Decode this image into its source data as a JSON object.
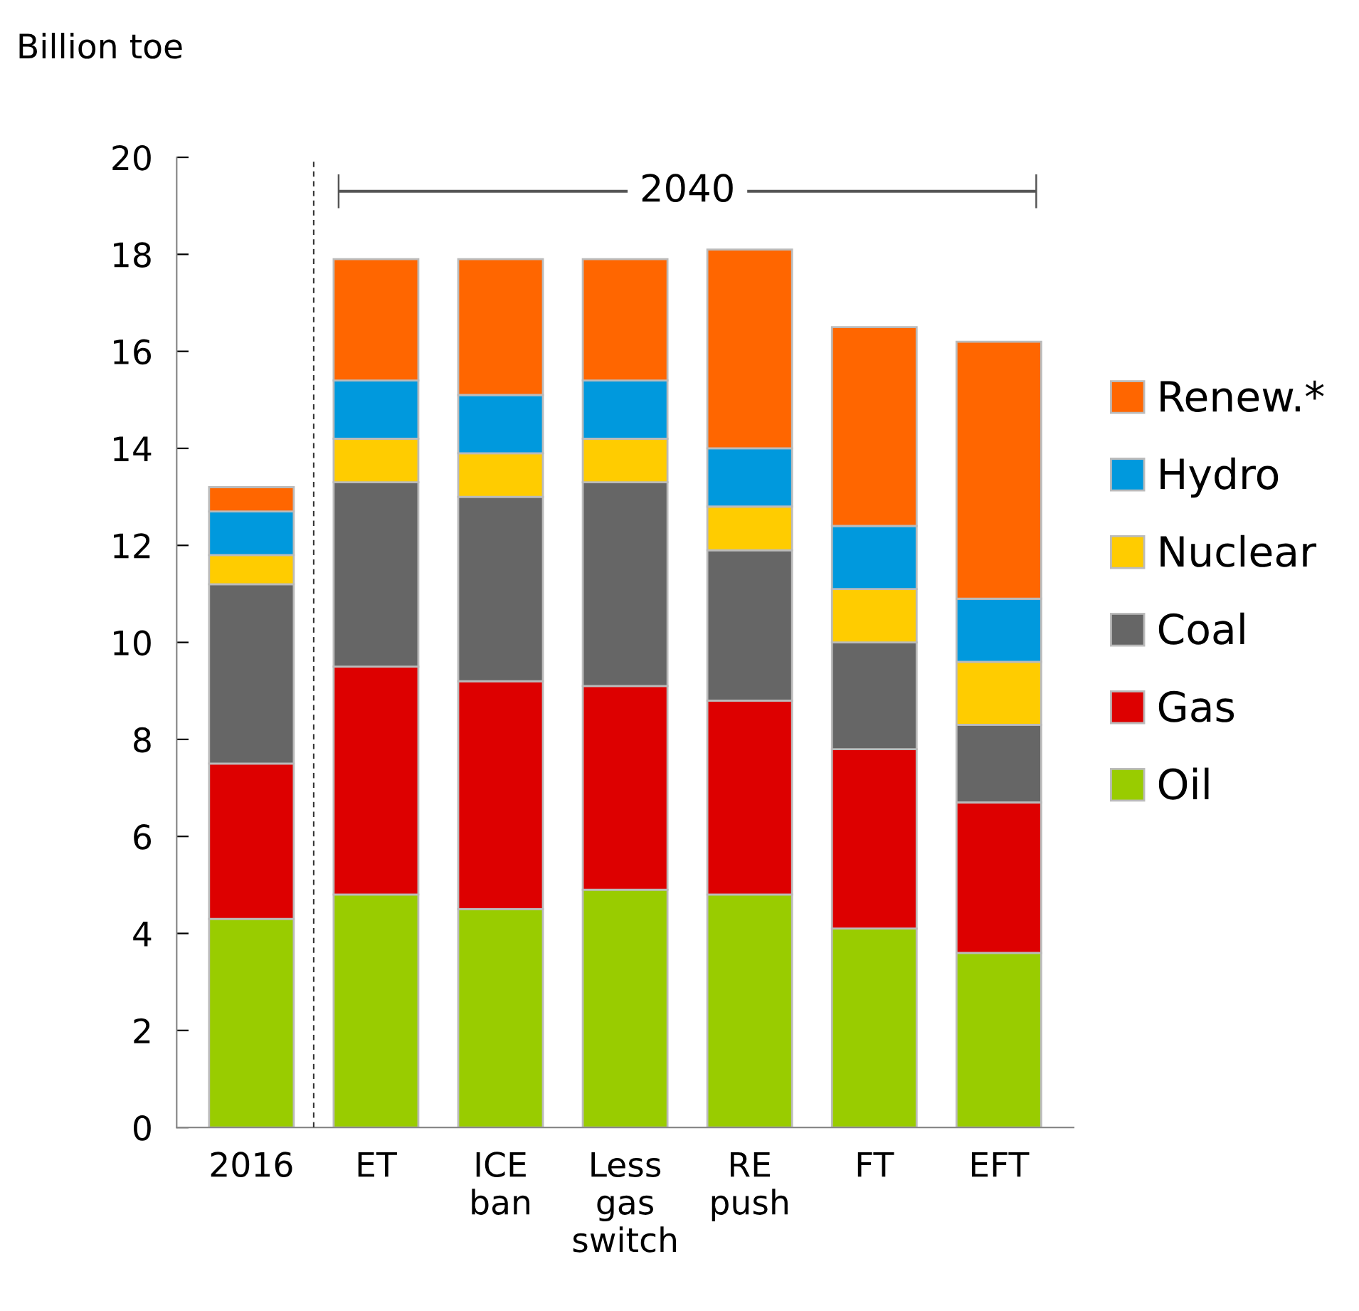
{
  "chart_data": {
    "type": "bar",
    "stacked": true,
    "ylabel": "Billion toe",
    "categories": [
      "2016",
      "ET",
      "ICE\nban",
      "Less\ngas\nswitch",
      "RE\npush",
      "FT",
      "EFT"
    ],
    "series": [
      {
        "name": "Oil",
        "color": "#99cc00",
        "values": [
          4.3,
          4.8,
          4.5,
          4.9,
          4.8,
          4.1,
          3.6
        ]
      },
      {
        "name": "Gas",
        "color": "#dd0000",
        "values": [
          3.2,
          4.7,
          4.7,
          4.2,
          4.0,
          3.7,
          3.1
        ]
      },
      {
        "name": "Coal",
        "color": "#666666",
        "values": [
          3.7,
          3.8,
          3.8,
          4.2,
          3.1,
          2.2,
          1.6
        ]
      },
      {
        "name": "Nuclear",
        "color": "#ffcc00",
        "values": [
          0.6,
          0.9,
          0.9,
          0.9,
          0.9,
          1.1,
          1.3
        ]
      },
      {
        "name": "Hydro",
        "color": "#0099dd",
        "values": [
          0.9,
          1.2,
          1.2,
          1.2,
          1.2,
          1.3,
          1.3
        ]
      },
      {
        "name": "Renew.*",
        "color": "#ff6600",
        "values": [
          0.5,
          2.5,
          2.8,
          2.5,
          4.1,
          4.1,
          5.3
        ]
      }
    ],
    "ylim": [
      0,
      20
    ],
    "yticks": [
      0,
      2,
      4,
      6,
      8,
      10,
      12,
      14,
      16,
      18,
      20
    ],
    "annotations": [
      "2040"
    ],
    "legend": "right",
    "grid": false
  }
}
